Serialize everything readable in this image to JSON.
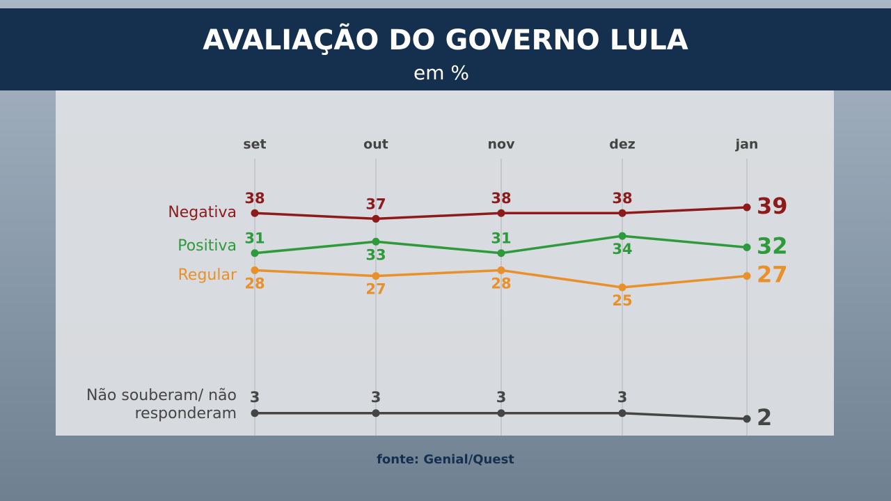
{
  "chart_data": {
    "type": "line",
    "title": "AVALIAÇÃO DO GOVERNO LULA",
    "subtitle": "em %",
    "categories": [
      "set",
      "out",
      "nov",
      "dez",
      "jan"
    ],
    "series": [
      {
        "name": "Negativa",
        "color": "#8e1b1b",
        "values": [
          38,
          37,
          38,
          38,
          39
        ]
      },
      {
        "name": "Positiva",
        "color": "#2f9a3b",
        "values": [
          31,
          33,
          31,
          34,
          32
        ]
      },
      {
        "name": "Regular",
        "color": "#e8902a",
        "values": [
          28,
          27,
          28,
          25,
          27
        ]
      },
      {
        "name": "Não souberam/ não responderam",
        "color": "#454545",
        "values": [
          3,
          3,
          3,
          3,
          2
        ]
      }
    ],
    "source": "fonte: Genial/Quest"
  }
}
